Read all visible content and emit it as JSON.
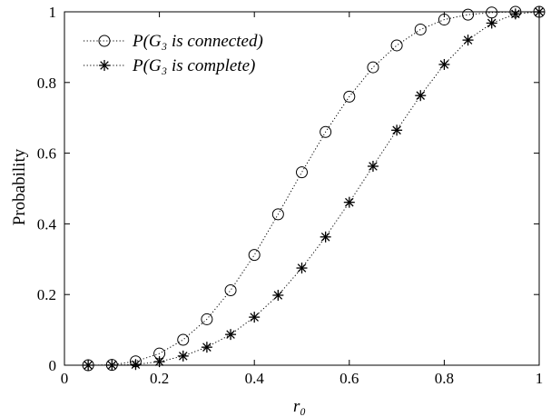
{
  "chart_data": {
    "type": "line",
    "title": "",
    "xlabel": "r₀",
    "ylabel": "Probability",
    "xlim": [
      0,
      1
    ],
    "ylim": [
      0,
      1
    ],
    "x_ticks": [
      "0",
      "0.2",
      "0.4",
      "0.6",
      "0.8",
      "1"
    ],
    "y_ticks": [
      "0",
      "0.2",
      "0.4",
      "0.6",
      "0.8",
      "1"
    ],
    "grid": false,
    "legend_position": "top-left",
    "x": [
      0.05,
      0.1,
      0.15,
      0.2,
      0.25,
      0.3,
      0.35,
      0.4,
      0.45,
      0.5,
      0.55,
      0.6,
      0.65,
      0.7,
      0.75,
      0.8,
      0.85,
      0.9,
      0.95,
      1.0
    ],
    "series": [
      {
        "name": "P(G₃ is connected)",
        "marker": "circle",
        "line_style": "dotted",
        "values": [
          0.0,
          0.001,
          0.011,
          0.033,
          0.072,
          0.13,
          0.212,
          0.312,
          0.427,
          0.546,
          0.66,
          0.76,
          0.843,
          0.905,
          0.95,
          0.978,
          0.992,
          0.998,
          1.0,
          1.0
        ]
      },
      {
        "name": "P(G₃ is complete)",
        "marker": "asterisk",
        "line_style": "dotted",
        "values": [
          0.0,
          0.0,
          0.002,
          0.01,
          0.026,
          0.051,
          0.087,
          0.136,
          0.198,
          0.275,
          0.363,
          0.461,
          0.563,
          0.665,
          0.763,
          0.851,
          0.92,
          0.968,
          0.994,
          1.0
        ]
      }
    ]
  }
}
